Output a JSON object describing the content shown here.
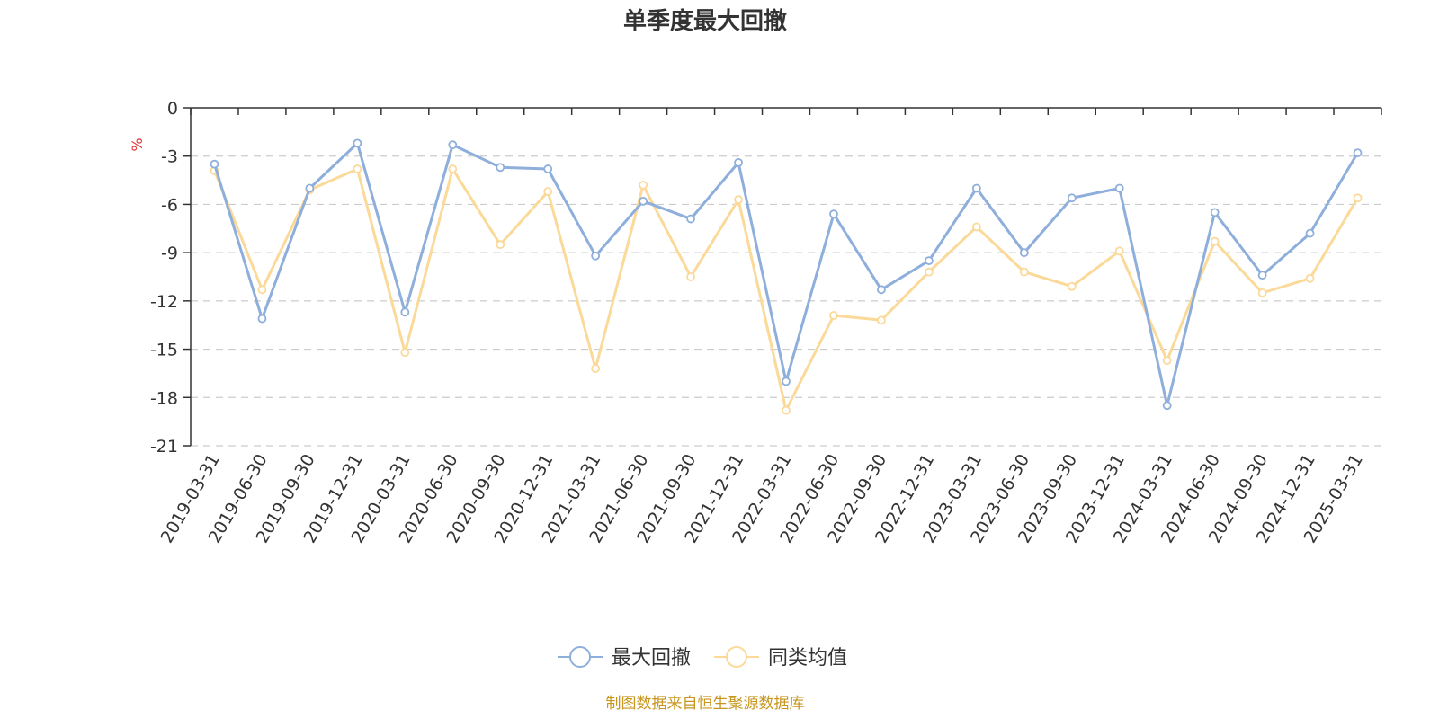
{
  "chart_data": {
    "type": "line",
    "title": "单季度最大回撤",
    "ylabel": "%",
    "ylim": [
      -21,
      0
    ],
    "yticks": [
      0,
      -3,
      -6,
      -9,
      -12,
      -15,
      -18,
      -21
    ],
    "grid": true,
    "legend_position": "bottom-center",
    "categories": [
      "2019-03-31",
      "2019-06-30",
      "2019-09-30",
      "2019-12-31",
      "2020-03-31",
      "2020-06-30",
      "2020-09-30",
      "2020-12-31",
      "2021-03-31",
      "2021-06-30",
      "2021-09-30",
      "2021-12-31",
      "2022-03-31",
      "2022-06-30",
      "2022-09-30",
      "2022-12-31",
      "2023-03-31",
      "2023-06-30",
      "2023-09-30",
      "2023-12-31",
      "2024-03-31",
      "2024-06-30",
      "2024-09-30",
      "2024-12-31",
      "2025-03-31"
    ],
    "series": [
      {
        "name": "最大回撤",
        "color": "#8eaedb",
        "values": [
          -3.5,
          -13.1,
          -5.0,
          -2.2,
          -12.7,
          -2.3,
          -3.7,
          -3.8,
          -9.2,
          -5.8,
          -6.9,
          -3.4,
          -17.0,
          -6.6,
          -11.3,
          -9.5,
          -5.0,
          -9.0,
          -5.6,
          -5.0,
          -18.5,
          -6.5,
          -10.4,
          -7.8,
          -2.8
        ]
      },
      {
        "name": "同类均值",
        "color": "#fad999",
        "values": [
          -3.9,
          -11.3,
          -5.1,
          -3.8,
          -15.2,
          -3.8,
          -8.5,
          -5.2,
          -16.2,
          -4.8,
          -10.5,
          -5.7,
          -18.8,
          -12.9,
          -13.2,
          -10.2,
          -7.4,
          -10.2,
          -11.1,
          -8.9,
          -15.7,
          -8.3,
          -11.5,
          -10.6,
          -5.6
        ]
      }
    ],
    "source": "制图数据来自恒生聚源数据库"
  }
}
